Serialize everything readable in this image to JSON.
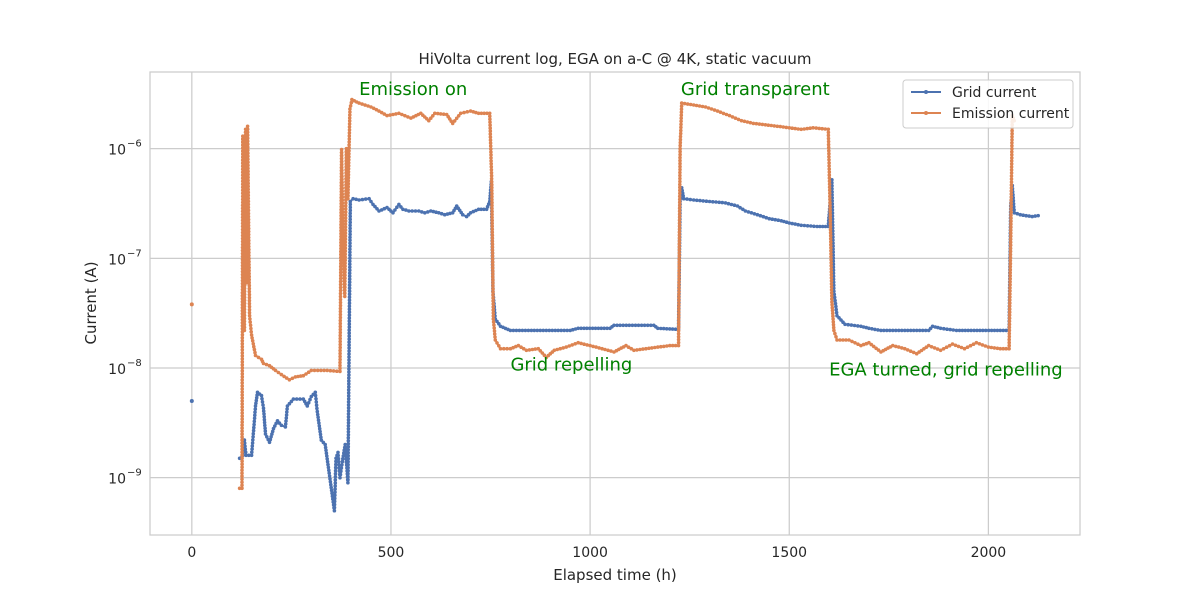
{
  "colors": {
    "grid_current": "#4c72b0",
    "emission_current": "#dd8452",
    "annotation": "#008000",
    "gridline": "#cccccc",
    "axis_frame": "#cccccc"
  },
  "chart_data": {
    "type": "line",
    "title": "HiVolta current log, EGA on a-C @ 4K, static vacuum",
    "xlabel": "Elapsed time (h)",
    "ylabel": "Current (A)",
    "xlim": [
      -105,
      2230
    ],
    "ylim": [
      3e-10,
      5e-06
    ],
    "yscale": "log",
    "grid": true,
    "legend_position": "top-right",
    "xticks": [
      0,
      500,
      1000,
      1500,
      2000
    ],
    "xtick_labels": [
      "0",
      "500",
      "1000",
      "1500",
      "2000"
    ],
    "yticks": [
      1e-09,
      1e-08,
      1e-07,
      1e-06
    ],
    "ytick_labels": [
      {
        "base": "10",
        "exp": "−9"
      },
      {
        "base": "10",
        "exp": "−8"
      },
      {
        "base": "10",
        "exp": "−7"
      },
      {
        "base": "10",
        "exp": "−6"
      }
    ],
    "annotations": [
      {
        "text": "Emission on",
        "x": 420,
        "y": 3.1e-06
      },
      {
        "text": "Grid transparent",
        "x": 1228,
        "y": 3.1e-06
      },
      {
        "text": "Grid repelling",
        "x": 800,
        "y": 9.5e-09
      },
      {
        "text": "EGA turned, grid repelling",
        "x": 1600,
        "y": 8.5e-09
      }
    ],
    "series": [
      {
        "name": "Grid current",
        "points": [
          [
            0,
            5e-09
          ],
          [
            120,
            1.5e-09
          ],
          [
            128,
            1.6e-09
          ],
          [
            132,
            2.2e-09
          ],
          [
            136,
            1.6e-09
          ],
          [
            150,
            1.6e-09
          ],
          [
            160,
            4.5e-09
          ],
          [
            165,
            6e-09
          ],
          [
            175,
            5.6e-09
          ],
          [
            180,
            4.3e-09
          ],
          [
            185,
            2.5e-09
          ],
          [
            195,
            2.1e-09
          ],
          [
            205,
            2.8e-09
          ],
          [
            215,
            3.3e-09
          ],
          [
            225,
            3e-09
          ],
          [
            235,
            2.9e-09
          ],
          [
            240,
            4.5e-09
          ],
          [
            255,
            5.2e-09
          ],
          [
            280,
            5.2e-09
          ],
          [
            290,
            4.5e-09
          ],
          [
            300,
            5.5e-09
          ],
          [
            310,
            6e-09
          ],
          [
            315,
            4e-09
          ],
          [
            325,
            2.2e-09
          ],
          [
            335,
            2e-09
          ],
          [
            345,
            1.1e-09
          ],
          [
            358,
            5e-10
          ],
          [
            362,
            1.5e-09
          ],
          [
            367,
            1.7e-09
          ],
          [
            372,
            1e-09
          ],
          [
            378,
            1.4e-09
          ],
          [
            385,
            2e-09
          ],
          [
            392,
            9e-10
          ],
          [
            398,
            3.3e-07
          ],
          [
            405,
            3.5e-07
          ],
          [
            420,
            3.4e-07
          ],
          [
            445,
            3.5e-07
          ],
          [
            455,
            3.1e-07
          ],
          [
            470,
            2.7e-07
          ],
          [
            490,
            2.9e-07
          ],
          [
            505,
            2.6e-07
          ],
          [
            520,
            3.1e-07
          ],
          [
            530,
            2.8e-07
          ],
          [
            545,
            2.7e-07
          ],
          [
            570,
            2.7e-07
          ],
          [
            585,
            2.6e-07
          ],
          [
            600,
            2.7e-07
          ],
          [
            620,
            2.6e-07
          ],
          [
            635,
            2.5e-07
          ],
          [
            655,
            2.6e-07
          ],
          [
            665,
            3e-07
          ],
          [
            680,
            2.5e-07
          ],
          [
            690,
            2.4e-07
          ],
          [
            700,
            2.6e-07
          ],
          [
            720,
            2.8e-07
          ],
          [
            740,
            2.8e-07
          ],
          [
            748,
            3.3e-07
          ],
          [
            752,
            5e-07
          ],
          [
            756,
            5e-08
          ],
          [
            762,
            2.8e-08
          ],
          [
            775,
            2.4e-08
          ],
          [
            800,
            2.2e-08
          ],
          [
            950,
            2.2e-08
          ],
          [
            970,
            2.3e-08
          ],
          [
            1050,
            2.3e-08
          ],
          [
            1060,
            2.45e-08
          ],
          [
            1160,
            2.45e-08
          ],
          [
            1170,
            2.3e-08
          ],
          [
            1222,
            2.25e-08
          ],
          [
            1226,
            3.3e-07
          ],
          [
            1230,
            4.4e-07
          ],
          [
            1235,
            3.5e-07
          ],
          [
            1260,
            3.4e-07
          ],
          [
            1300,
            3.3e-07
          ],
          [
            1340,
            3.2e-07
          ],
          [
            1370,
            3e-07
          ],
          [
            1390,
            2.7e-07
          ],
          [
            1420,
            2.5e-07
          ],
          [
            1450,
            2.3e-07
          ],
          [
            1480,
            2.2e-07
          ],
          [
            1500,
            2.1e-07
          ],
          [
            1530,
            2e-07
          ],
          [
            1570,
            1.95e-07
          ],
          [
            1598,
            1.95e-07
          ],
          [
            1603,
            3.4e-07
          ],
          [
            1607,
            5.2e-07
          ],
          [
            1612,
            5e-08
          ],
          [
            1620,
            3e-08
          ],
          [
            1640,
            2.5e-08
          ],
          [
            1680,
            2.4e-08
          ],
          [
            1700,
            2.3e-08
          ],
          [
            1730,
            2.2e-08
          ],
          [
            1850,
            2.2e-08
          ],
          [
            1860,
            2.4e-08
          ],
          [
            1880,
            2.3e-08
          ],
          [
            1920,
            2.2e-08
          ],
          [
            2052,
            2.2e-08
          ],
          [
            2056,
            3e-07
          ],
          [
            2060,
            4.6e-07
          ],
          [
            2065,
            2.6e-07
          ],
          [
            2080,
            2.5e-07
          ],
          [
            2110,
            2.4e-07
          ],
          [
            2125,
            2.45e-07
          ]
        ]
      },
      {
        "name": "Emission current",
        "points": [
          [
            0,
            3.8e-08
          ],
          [
            120,
            8e-10
          ],
          [
            126,
            8e-10
          ],
          [
            128,
            1.3e-06
          ],
          [
            132,
            2.2e-08
          ],
          [
            135,
            1.5e-06
          ],
          [
            138,
            6e-08
          ],
          [
            140,
            1.6e-06
          ],
          [
            145,
            3e-08
          ],
          [
            150,
            2e-08
          ],
          [
            160,
            1.3e-08
          ],
          [
            175,
            1.2e-08
          ],
          [
            180,
            1.1e-08
          ],
          [
            195,
            1.05e-08
          ],
          [
            210,
            9.5e-09
          ],
          [
            225,
            8.7e-09
          ],
          [
            245,
            7.8e-09
          ],
          [
            260,
            8.3e-09
          ],
          [
            280,
            8.5e-09
          ],
          [
            300,
            9.5e-09
          ],
          [
            340,
            9.5e-09
          ],
          [
            372,
            9.3e-09
          ],
          [
            376,
            9.8e-07
          ],
          [
            380,
            1.1e-07
          ],
          [
            384,
            4.5e-08
          ],
          [
            388,
            1e-06
          ],
          [
            392,
            3.5e-07
          ],
          [
            397,
            2.3e-06
          ],
          [
            402,
            2.8e-06
          ],
          [
            420,
            2.6e-06
          ],
          [
            450,
            2.4e-06
          ],
          [
            470,
            2.2e-06
          ],
          [
            490,
            2e-06
          ],
          [
            520,
            2.1e-06
          ],
          [
            550,
            1.9e-06
          ],
          [
            575,
            2.1e-06
          ],
          [
            595,
            1.8e-06
          ],
          [
            610,
            2.1e-06
          ],
          [
            640,
            2.05e-06
          ],
          [
            655,
            1.7e-06
          ],
          [
            675,
            2.1e-06
          ],
          [
            700,
            2.2e-06
          ],
          [
            720,
            2.1e-06
          ],
          [
            748,
            2.1e-06
          ],
          [
            753,
            5e-07
          ],
          [
            757,
            2.8e-08
          ],
          [
            762,
            1.8e-08
          ],
          [
            775,
            1.5e-08
          ],
          [
            800,
            1.5e-08
          ],
          [
            820,
            1.6e-08
          ],
          [
            840,
            1.45e-08
          ],
          [
            870,
            1.5e-08
          ],
          [
            890,
            1.25e-08
          ],
          [
            910,
            1.45e-08
          ],
          [
            940,
            1.55e-08
          ],
          [
            970,
            1.7e-08
          ],
          [
            1000,
            1.6e-08
          ],
          [
            1030,
            1.5e-08
          ],
          [
            1060,
            1.4e-08
          ],
          [
            1090,
            1.6e-08
          ],
          [
            1110,
            1.45e-08
          ],
          [
            1140,
            1.5e-08
          ],
          [
            1170,
            1.55e-08
          ],
          [
            1200,
            1.6e-08
          ],
          [
            1222,
            1.6e-08
          ],
          [
            1226,
            1e-06
          ],
          [
            1230,
            2.6e-06
          ],
          [
            1260,
            2.5e-06
          ],
          [
            1290,
            2.4e-06
          ],
          [
            1320,
            2.2e-06
          ],
          [
            1350,
            2e-06
          ],
          [
            1380,
            1.8e-06
          ],
          [
            1410,
            1.7e-06
          ],
          [
            1440,
            1.65e-06
          ],
          [
            1470,
            1.6e-06
          ],
          [
            1500,
            1.55e-06
          ],
          [
            1530,
            1.5e-06
          ],
          [
            1560,
            1.55e-06
          ],
          [
            1598,
            1.5e-06
          ],
          [
            1603,
            2.5e-07
          ],
          [
            1607,
            4e-08
          ],
          [
            1612,
            2.2e-08
          ],
          [
            1620,
            1.8e-08
          ],
          [
            1650,
            1.8e-08
          ],
          [
            1680,
            1.6e-08
          ],
          [
            1700,
            1.7e-08
          ],
          [
            1730,
            1.4e-08
          ],
          [
            1760,
            1.6e-08
          ],
          [
            1790,
            1.5e-08
          ],
          [
            1820,
            1.35e-08
          ],
          [
            1850,
            1.6e-08
          ],
          [
            1880,
            1.45e-08
          ],
          [
            1910,
            1.65e-08
          ],
          [
            1940,
            1.5e-08
          ],
          [
            1970,
            1.7e-08
          ],
          [
            2000,
            1.55e-08
          ],
          [
            2030,
            1.5e-08
          ],
          [
            2052,
            1.5e-08
          ],
          [
            2056,
            1.4e-07
          ],
          [
            2060,
            2e-06
          ],
          [
            2065,
            1.8e-06
          ]
        ]
      }
    ]
  }
}
